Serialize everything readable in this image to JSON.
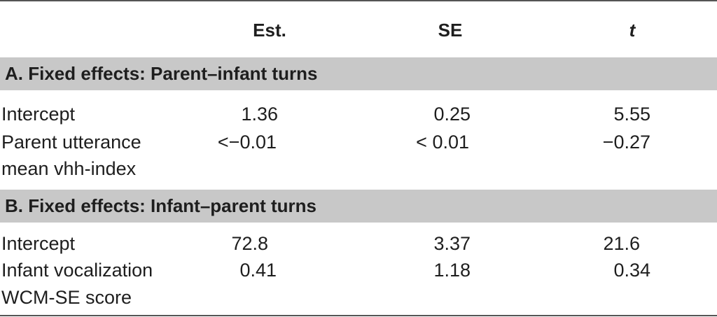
{
  "header": {
    "est": "Est.",
    "se": "SE",
    "t": "t"
  },
  "sections": [
    {
      "title": "A. Fixed effects: Parent–infant turns",
      "rows": [
        {
          "label": "Intercept",
          "est": "1.36",
          "se": "0.25",
          "t": "5.55"
        },
        {
          "label_line1": "Parent utterance",
          "label_line2": "mean vhh-index",
          "est": "<−0.01",
          "se": "< 0.01",
          "t": "−0.27"
        }
      ]
    },
    {
      "title": "B. Fixed effects: Infant–parent turns",
      "rows": [
        {
          "label": "Intercept",
          "est": "72.8",
          "se": "3.37",
          "t": "21.6"
        },
        {
          "label_line1": "Infant vocalization",
          "label_line2": "WCM-SE score",
          "est": "0.41",
          "se": "1.18",
          "t": "0.34"
        }
      ]
    }
  ]
}
